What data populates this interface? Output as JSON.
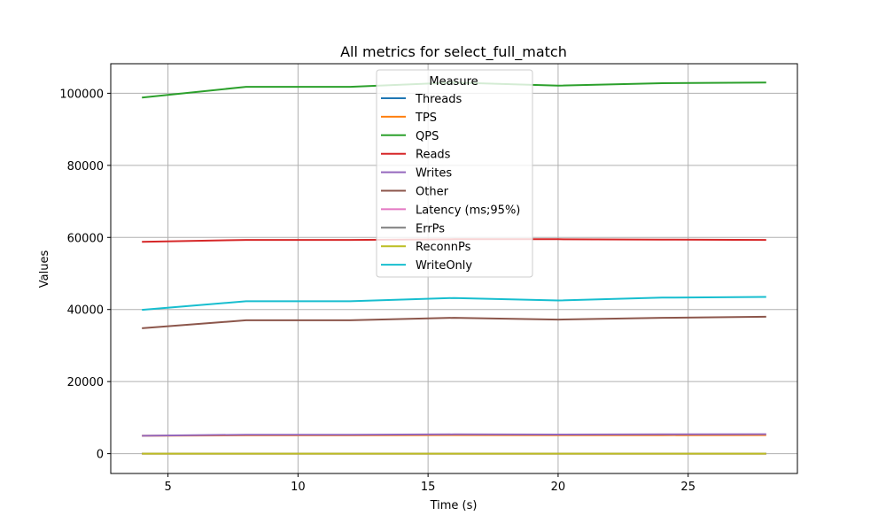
{
  "chart_data": {
    "type": "line",
    "title": "All metrics for select_full_match",
    "xlabel": "Time (s)",
    "ylabel": "Values",
    "xlim": [
      2.8,
      29.2
    ],
    "ylim": [
      -5500,
      108200
    ],
    "xticks": [
      5,
      10,
      15,
      20,
      25
    ],
    "yticks": [
      0,
      20000,
      40000,
      60000,
      80000,
      100000
    ],
    "grid": true,
    "legend_title": "Measure",
    "legend_position": "top-center",
    "x": [
      4,
      8,
      12,
      16,
      20,
      24,
      28
    ],
    "series": [
      {
        "name": "Threads",
        "color": "#1f77b4",
        "values": [
          16,
          16,
          16,
          16,
          16,
          16,
          16
        ]
      },
      {
        "name": "TPS",
        "color": "#ff7f0e",
        "values": [
          4950,
          5090,
          5090,
          5150,
          5100,
          5140,
          5160
        ]
      },
      {
        "name": "QPS",
        "color": "#2ca02c",
        "values": [
          98800,
          101800,
          101800,
          103000,
          102100,
          102800,
          103000
        ]
      },
      {
        "name": "Reads",
        "color": "#d62728",
        "values": [
          58800,
          59300,
          59300,
          59500,
          59500,
          59400,
          59300
        ]
      },
      {
        "name": "Writes",
        "color": "#9467bd",
        "values": [
          4950,
          5250,
          5250,
          5350,
          5300,
          5350,
          5400
        ]
      },
      {
        "name": "Other",
        "color": "#8c564b",
        "values": [
          34800,
          37000,
          37000,
          37700,
          37200,
          37700,
          38000
        ]
      },
      {
        "name": "Latency (ms;95%)",
        "color": "#e377c2",
        "values": [
          5,
          4,
          4,
          4,
          4,
          4,
          4
        ]
      },
      {
        "name": "ErrPs",
        "color": "#7f7f7f",
        "values": [
          0,
          0,
          0,
          0,
          0,
          0,
          0
        ]
      },
      {
        "name": "ReconnPs",
        "color": "#bcbd22",
        "values": [
          0,
          0,
          0,
          0,
          0,
          0,
          0
        ]
      },
      {
        "name": "WriteOnly",
        "color": "#17becf",
        "values": [
          39900,
          42300,
          42300,
          43200,
          42500,
          43300,
          43500
        ]
      }
    ]
  }
}
